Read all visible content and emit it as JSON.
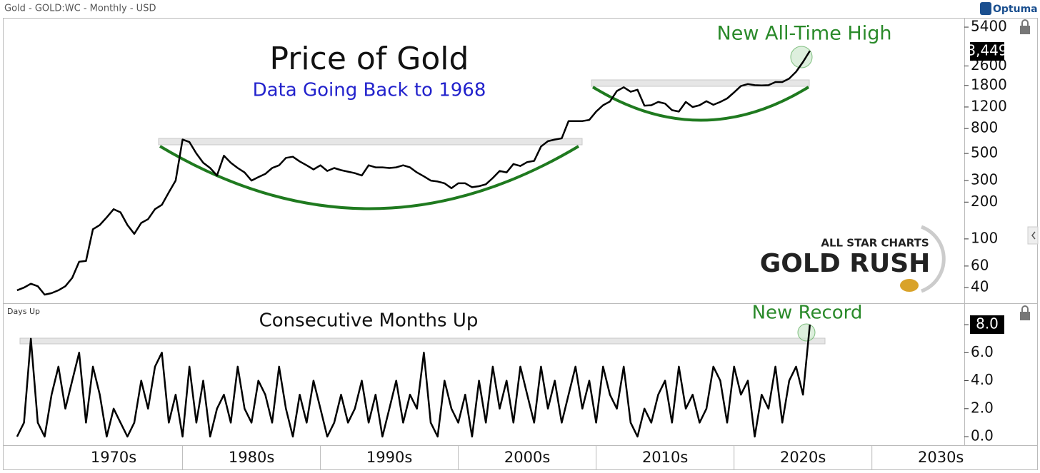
{
  "header": {
    "title": "Gold - GOLD:WC - Monthly - USD",
    "brand": "Optuma"
  },
  "logo": {
    "line1": "ALL STAR CHARTS",
    "line2": "GOLD RUSH"
  },
  "chart_data": [
    {
      "type": "line",
      "title": "Price of Gold",
      "subtitle": "Data Going Back to 1968",
      "annotation": "New All-Time High",
      "log_scale": true,
      "color": "#000000",
      "x": [
        1968,
        1968.5,
        1969,
        1969.5,
        1970,
        1970.5,
        1971,
        1971.5,
        1972,
        1972.5,
        1973,
        1973.5,
        1974,
        1974.5,
        1975,
        1975.5,
        1976,
        1976.5,
        1977,
        1977.5,
        1978,
        1978.5,
        1979,
        1979.5,
        1980,
        1980.5,
        1981,
        1981.5,
        1982,
        1982.5,
        1983,
        1983.5,
        1984,
        1984.5,
        1985,
        1985.5,
        1986,
        1986.5,
        1987,
        1987.5,
        1988,
        1988.5,
        1989,
        1989.5,
        1990,
        1990.5,
        1991,
        1991.5,
        1992,
        1992.5,
        1993,
        1993.5,
        1994,
        1994.5,
        1995,
        1995.5,
        1996,
        1996.5,
        1997,
        1997.5,
        1998,
        1998.5,
        1999,
        1999.5,
        2000,
        2000.5,
        2001,
        2001.5,
        2002,
        2002.5,
        2003,
        2003.5,
        2004,
        2004.5,
        2005,
        2005.5,
        2006,
        2006.5,
        2007,
        2007.5,
        2008,
        2008.5,
        2009,
        2009.5,
        2010,
        2010.5,
        2011,
        2011.5,
        2012,
        2012.5,
        2013,
        2013.5,
        2014,
        2014.5,
        2015,
        2015.5,
        2016,
        2016.5,
        2017,
        2017.5,
        2018,
        2018.5,
        2019,
        2019.5,
        2020,
        2020.5,
        2021,
        2021.5,
        2022,
        2022.5,
        2023,
        2023.5,
        2024,
        2024.5,
        2025,
        2025.5
      ],
      "values": [
        38,
        40,
        43,
        41,
        35,
        36,
        38,
        41,
        48,
        65,
        66,
        120,
        130,
        150,
        175,
        165,
        130,
        110,
        135,
        145,
        175,
        190,
        240,
        300,
        650,
        620,
        500,
        420,
        380,
        330,
        480,
        420,
        380,
        350,
        300,
        320,
        340,
        380,
        400,
        460,
        470,
        430,
        400,
        370,
        400,
        360,
        380,
        365,
        355,
        345,
        330,
        400,
        385,
        385,
        380,
        385,
        400,
        385,
        350,
        325,
        300,
        295,
        285,
        260,
        285,
        285,
        265,
        270,
        280,
        315,
        360,
        350,
        410,
        395,
        425,
        435,
        570,
        630,
        650,
        665,
        920,
        920,
        920,
        940,
        1100,
        1240,
        1330,
        1620,
        1740,
        1600,
        1660,
        1230,
        1240,
        1320,
        1280,
        1130,
        1100,
        1320,
        1200,
        1240,
        1340,
        1250,
        1320,
        1410,
        1580,
        1780,
        1850,
        1810,
        1800,
        1810,
        1920,
        1920,
        2050,
        2330,
        2800,
        3449
      ],
      "last_value_label": "3,449",
      "xlim": [
        1966.76,
        2036.7
      ],
      "ylim": [
        30.6,
        6180
      ],
      "yticks": [
        40,
        60,
        100,
        200,
        300,
        500,
        800,
        1200,
        1800,
        2600,
        5400
      ]
    },
    {
      "type": "line",
      "title": "Consecutive Months Up",
      "axis_label": "Days Up",
      "annotation": "New Record",
      "color": "#000000",
      "x": [
        1968,
        1968.5,
        1969,
        1969.5,
        1970,
        1970.5,
        1971,
        1971.5,
        1972,
        1972.5,
        1973,
        1973.5,
        1974,
        1974.5,
        1975,
        1975.5,
        1976,
        1976.5,
        1977,
        1977.5,
        1978,
        1978.5,
        1979,
        1979.5,
        1980,
        1980.5,
        1981,
        1981.5,
        1982,
        1982.5,
        1983,
        1983.5,
        1984,
        1984.5,
        1985,
        1985.5,
        1986,
        1986.5,
        1987,
        1987.5,
        1988,
        1988.5,
        1989,
        1989.5,
        1990,
        1990.5,
        1991,
        1991.5,
        1992,
        1992.5,
        1993,
        1993.5,
        1994,
        1994.5,
        1995,
        1995.5,
        1996,
        1996.5,
        1997,
        1997.5,
        1998,
        1998.5,
        1999,
        1999.5,
        2000,
        2000.5,
        2001,
        2001.5,
        2002,
        2002.5,
        2003,
        2003.5,
        2004,
        2004.5,
        2005,
        2005.5,
        2006,
        2006.5,
        2007,
        2007.5,
        2008,
        2008.5,
        2009,
        2009.5,
        2010,
        2010.5,
        2011,
        2011.5,
        2012,
        2012.5,
        2013,
        2013.5,
        2014,
        2014.5,
        2015,
        2015.5,
        2016,
        2016.5,
        2017,
        2017.5,
        2018,
        2018.5,
        2019,
        2019.5,
        2020,
        2020.5,
        2021,
        2021.5,
        2022,
        2022.5,
        2023,
        2023.5,
        2024,
        2024.5,
        2025,
        2025.5
      ],
      "values": [
        0,
        1,
        7,
        1,
        0,
        3,
        5,
        2,
        4,
        6,
        1,
        5,
        3,
        0,
        2,
        1,
        0,
        1,
        4,
        2,
        5,
        6,
        1,
        3,
        0,
        5,
        1,
        4,
        0,
        2,
        3,
        1,
        5,
        2,
        1,
        4,
        3,
        1,
        5,
        2,
        0,
        3,
        1,
        4,
        2,
        0,
        1,
        3,
        1,
        2,
        4,
        1,
        3,
        0,
        2,
        4,
        1,
        3,
        2,
        6,
        1,
        0,
        4,
        2,
        1,
        3,
        0,
        4,
        1,
        5,
        2,
        4,
        1,
        5,
        3,
        1,
        5,
        2,
        4,
        1,
        3,
        5,
        2,
        4,
        1,
        5,
        3,
        2,
        5,
        1,
        0,
        2,
        1,
        3,
        4,
        1,
        5,
        2,
        3,
        1,
        2,
        5,
        4,
        1,
        5,
        3,
        4,
        0,
        3,
        2,
        5,
        1,
        4,
        5,
        3,
        8
      ],
      "last_value_label": "8.0",
      "xlim": [
        1966.76,
        2036.7
      ],
      "ylim": [
        -0.66,
        9.38
      ],
      "yticks": [
        {
          "value": 0,
          "label": "0.0"
        },
        {
          "value": 2,
          "label": "2.0"
        },
        {
          "value": 4,
          "label": "4.0"
        },
        {
          "value": 6,
          "label": "6.0"
        },
        {
          "value": 8,
          "label": "8.0"
        }
      ],
      "xticks": [
        {
          "value": 1975,
          "label": "1970s"
        },
        {
          "value": 1985,
          "label": "1980s"
        },
        {
          "value": 1995,
          "label": "1990s"
        },
        {
          "value": 2005,
          "label": "2000s"
        },
        {
          "value": 2015,
          "label": "2010s"
        },
        {
          "value": 2025,
          "label": "2020s"
        },
        {
          "value": 2035,
          "label": "2030s"
        }
      ]
    }
  ]
}
